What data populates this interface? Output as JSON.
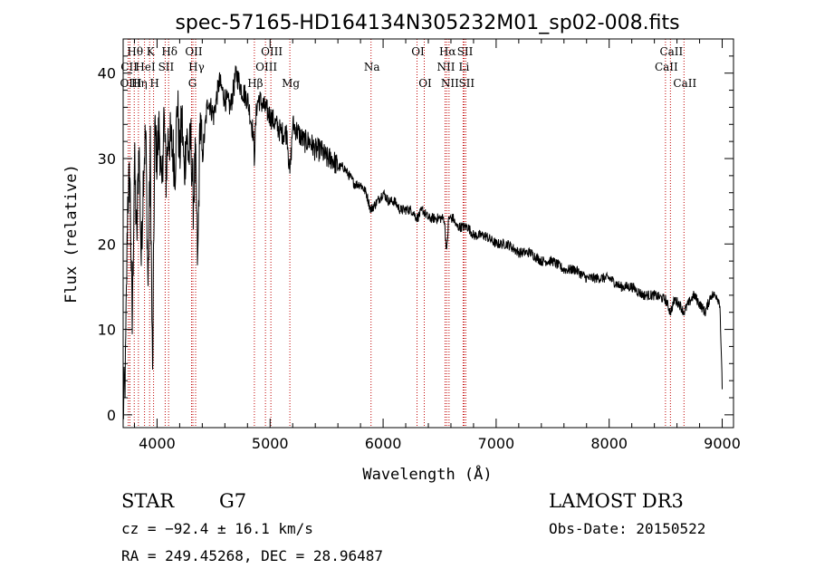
{
  "chart_data": {
    "type": "line",
    "title": "spec-57165-HD164134N305232M01_sp02-008.fits",
    "xlabel": "Wavelength (Å)",
    "ylabel": "Flux (relative)",
    "xlim": [
      3700,
      9100
    ],
    "ylim": [
      -1.5,
      44
    ],
    "xticks": [
      4000,
      5000,
      6000,
      7000,
      8000,
      9000
    ],
    "yticks": [
      0,
      10,
      20,
      30,
      40
    ],
    "series": [
      {
        "name": "flux",
        "x": [
          3700,
          3720,
          3740,
          3760,
          3780,
          3800,
          3820,
          3840,
          3860,
          3880,
          3900,
          3920,
          3940,
          3960,
          3980,
          4000,
          4020,
          4040,
          4060,
          4080,
          4100,
          4120,
          4140,
          4160,
          4180,
          4200,
          4220,
          4240,
          4260,
          4280,
          4300,
          4320,
          4340,
          4360,
          4380,
          4400,
          4450,
          4500,
          4550,
          4600,
          4650,
          4700,
          4750,
          4800,
          4850,
          4860,
          4880,
          4900,
          4950,
          5000,
          5050,
          5100,
          5150,
          5175,
          5200,
          5250,
          5300,
          5350,
          5400,
          5450,
          5500,
          5550,
          5600,
          5650,
          5700,
          5750,
          5800,
          5850,
          5890,
          5950,
          6000,
          6050,
          6100,
          6150,
          6200,
          6250,
          6300,
          6350,
          6400,
          6450,
          6500,
          6540,
          6563,
          6580,
          6620,
          6650,
          6700,
          6750,
          6800,
          6850,
          6900,
          7000,
          7100,
          7200,
          7300,
          7400,
          7500,
          7600,
          7700,
          7800,
          7900,
          8000,
          8100,
          8200,
          8300,
          8400,
          8498,
          8542,
          8580,
          8620,
          8662,
          8700,
          8750,
          8800,
          8850,
          8900,
          8950,
          8980,
          9000
        ],
        "values": [
          0,
          5,
          25,
          28,
          10,
          30,
          20,
          32,
          18,
          29,
          33,
          15,
          31,
          4,
          33,
          30,
          34,
          25,
          35,
          28,
          33,
          32,
          31,
          29,
          37,
          30,
          35,
          28,
          33,
          30,
          32,
          25,
          30,
          17,
          35,
          30,
          37,
          35,
          39,
          37,
          36,
          40,
          38,
          37,
          33,
          30,
          36,
          37,
          36,
          35,
          34,
          33,
          33,
          28,
          34,
          33,
          32,
          32,
          31,
          31,
          30,
          30,
          29,
          29,
          28,
          27,
          27,
          26,
          24,
          25,
          26,
          25,
          25,
          24,
          24,
          24,
          23,
          24,
          23,
          23,
          23,
          23,
          19,
          23,
          23,
          22,
          22,
          22,
          21,
          21,
          21,
          20,
          20,
          19,
          19,
          18,
          18,
          17,
          17,
          16,
          16,
          16,
          15,
          15,
          14,
          14,
          13.5,
          12,
          13.5,
          13,
          12,
          13,
          14,
          13,
          12,
          14,
          14,
          13,
          3
        ]
      }
    ],
    "lines": [
      {
        "name": "Hθ",
        "x": 3798,
        "row": 1
      },
      {
        "name": "CII",
        "x": 3745,
        "row": 2
      },
      {
        "name": "OIII",
        "x": 3760,
        "row": 3
      },
      {
        "name": "Hη",
        "x": 3835,
        "row": 3
      },
      {
        "name": "HeI",
        "x": 3889,
        "row": 2
      },
      {
        "name": "K",
        "x": 3934,
        "row": 1
      },
      {
        "name": "H",
        "x": 3969,
        "row": 3
      },
      {
        "name": "SII",
        "x": 4072,
        "row": 2
      },
      {
        "name": "Hδ",
        "x": 4102,
        "row": 1
      },
      {
        "name": "OII",
        "x": 4317,
        "row": 1
      },
      {
        "name": "Hγ",
        "x": 4341,
        "row": 2
      },
      {
        "name": "G",
        "x": 4305,
        "row": 3
      },
      {
        "name": "Hβ",
        "x": 4861,
        "row": 3
      },
      {
        "name": "OIII",
        "x": 4959,
        "row": 2
      },
      {
        "name": "OIII",
        "x": 5007,
        "row": 1
      },
      {
        "name": "Mg",
        "x": 5175,
        "row": 3
      },
      {
        "name": "Na",
        "x": 5893,
        "row": 2
      },
      {
        "name": "OI",
        "x": 6300,
        "row": 1
      },
      {
        "name": "OI",
        "x": 6364,
        "row": 3
      },
      {
        "name": "Hα",
        "x": 6563,
        "row": 1
      },
      {
        "name": "NII",
        "x": 6548,
        "row": 2
      },
      {
        "name": "NII",
        "x": 6583,
        "row": 3
      },
      {
        "name": "SII",
        "x": 6717,
        "row": 1
      },
      {
        "name": "Li",
        "x": 6708,
        "row": 2
      },
      {
        "name": "SII",
        "x": 6731,
        "row": 3
      },
      {
        "name": "CaII",
        "x": 8542,
        "row": 1
      },
      {
        "name": "CaII",
        "x": 8498,
        "row": 2
      },
      {
        "name": "CaII",
        "x": 8662,
        "row": 3
      }
    ]
  },
  "info": {
    "class": "STAR",
    "subclass": "G7",
    "survey": "LAMOST DR3",
    "cz": "cz = −92.4 ± 16.1 km/s",
    "obs_date": "Obs-Date: 20150522",
    "radec": "RA = 249.45268, DEC =  28.96487"
  }
}
